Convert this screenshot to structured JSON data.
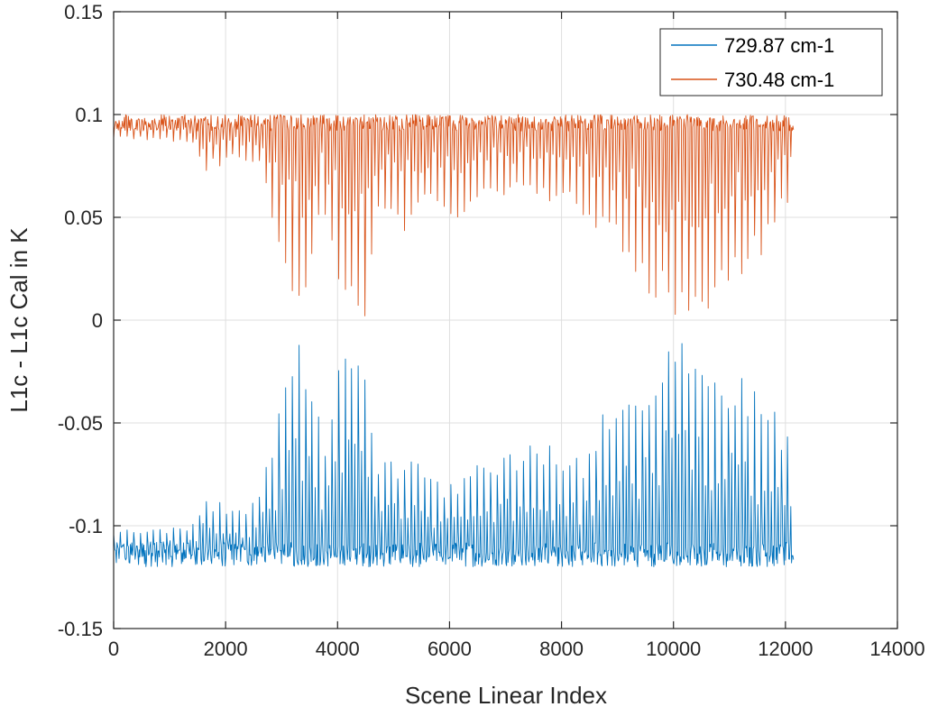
{
  "chart_data": {
    "type": "line",
    "title": "",
    "xlabel": "Scene Linear Index",
    "ylabel": "L1c - L1c Cal in K",
    "xlim": [
      0,
      14000
    ],
    "ylim": [
      -0.15,
      0.15
    ],
    "x_ticks": [
      0,
      2000,
      4000,
      6000,
      8000,
      10000,
      12000,
      14000
    ],
    "x_tick_labels": [
      "0",
      "2000",
      "4000",
      "6000",
      "8000",
      "10000",
      "12000",
      "14000"
    ],
    "y_ticks": [
      -0.15,
      -0.1,
      -0.05,
      0,
      0.05,
      0.1,
      0.15
    ],
    "y_tick_labels": [
      "-0.15",
      "-0.1",
      "-0.05",
      "0",
      "0.05",
      "0.1",
      "0.15"
    ],
    "grid": true,
    "legend_position": "top-right",
    "x_range_of_data": [
      0,
      12150
    ],
    "series": [
      {
        "name": "729.87 cm-1",
        "color": "#0072BD",
        "baseline": -0.114,
        "noise_amplitude": 0.006,
        "spike_direction": "up",
        "spike_period": 118,
        "spike_envelope": [
          [
            0,
            0.012
          ],
          [
            1400,
            0.014
          ],
          [
            1600,
            0.028
          ],
          [
            2000,
            0.025
          ],
          [
            2400,
            0.02
          ],
          [
            2700,
            0.04
          ],
          [
            3000,
            0.08
          ],
          [
            3300,
            0.115
          ],
          [
            3500,
            0.1
          ],
          [
            3750,
            0.05
          ],
          [
            4000,
            0.09
          ],
          [
            4300,
            0.11
          ],
          [
            4500,
            0.1
          ],
          [
            4700,
            0.045
          ],
          [
            5200,
            0.05
          ],
          [
            5600,
            0.04
          ],
          [
            6000,
            0.035
          ],
          [
            6700,
            0.05
          ],
          [
            7300,
            0.055
          ],
          [
            7800,
            0.055
          ],
          [
            8400,
            0.045
          ],
          [
            8600,
            0.065
          ],
          [
            9000,
            0.075
          ],
          [
            9600,
            0.095
          ],
          [
            9900,
            0.115
          ],
          [
            10400,
            0.11
          ],
          [
            10800,
            0.1
          ],
          [
            11300,
            0.085
          ],
          [
            11700,
            0.075
          ],
          [
            12000,
            0.06
          ],
          [
            12150,
            0.05
          ]
        ]
      },
      {
        "name": "730.48 cm-1",
        "color": "#D95319",
        "baseline": 0.096,
        "noise_amplitude": 0.004,
        "spike_direction": "down",
        "spike_period": 118,
        "spike_envelope": [
          [
            0,
            0.008
          ],
          [
            1400,
            0.01
          ],
          [
            1600,
            0.025
          ],
          [
            2000,
            0.02
          ],
          [
            2600,
            0.02
          ],
          [
            2800,
            0.045
          ],
          [
            3000,
            0.07
          ],
          [
            3300,
            0.098
          ],
          [
            3500,
            0.085
          ],
          [
            3750,
            0.04
          ],
          [
            4000,
            0.08
          ],
          [
            4200,
            0.105
          ],
          [
            4500,
            0.095
          ],
          [
            4700,
            0.04
          ],
          [
            5100,
            0.06
          ],
          [
            5600,
            0.04
          ],
          [
            6000,
            0.05
          ],
          [
            6700,
            0.04
          ],
          [
            7300,
            0.035
          ],
          [
            7800,
            0.04
          ],
          [
            8400,
            0.045
          ],
          [
            8700,
            0.055
          ],
          [
            9000,
            0.065
          ],
          [
            9600,
            0.085
          ],
          [
            9900,
            0.1
          ],
          [
            10400,
            0.1
          ],
          [
            10800,
            0.09
          ],
          [
            11300,
            0.075
          ],
          [
            11700,
            0.06
          ],
          [
            12000,
            0.045
          ],
          [
            12150,
            0.04
          ]
        ]
      }
    ]
  }
}
